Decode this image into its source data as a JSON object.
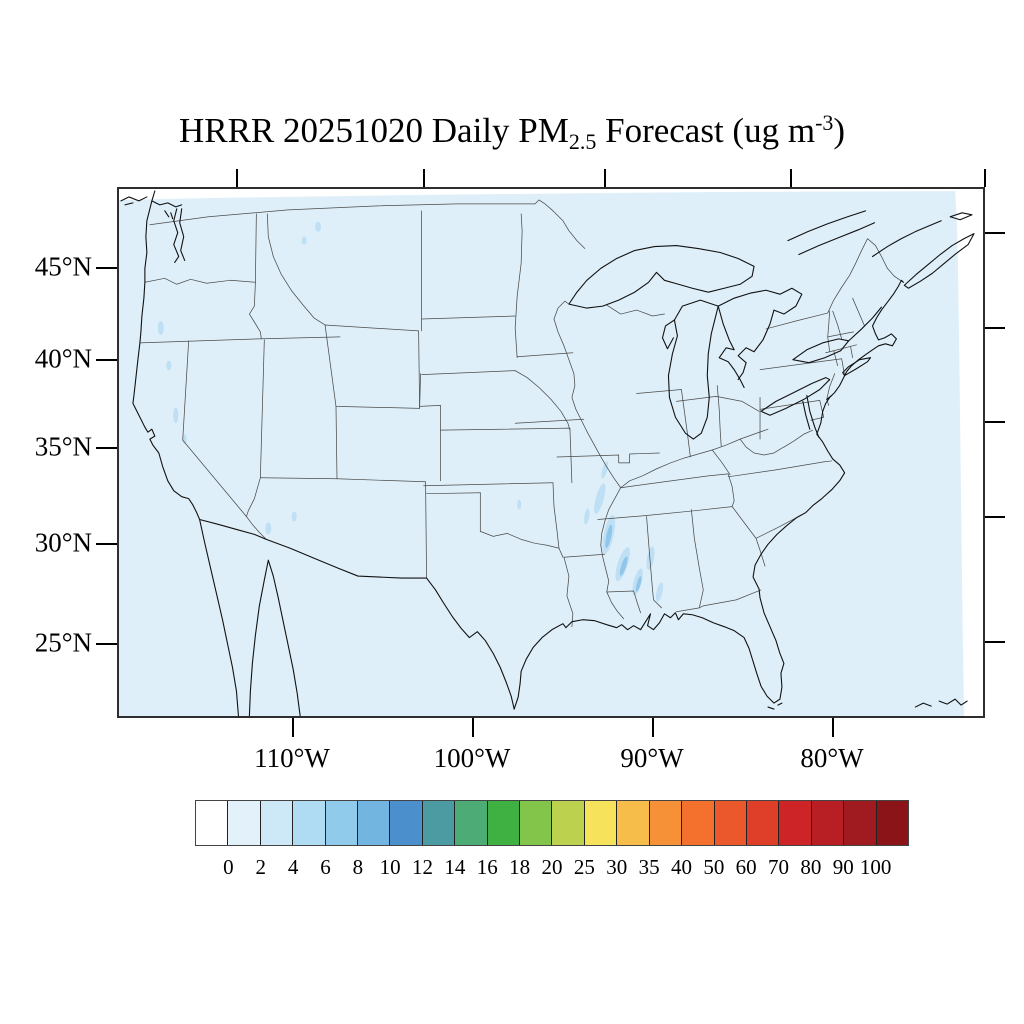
{
  "title": {
    "prefix": "HRRR 20251020 Daily PM",
    "subscript": "2.5",
    "middle": " Forecast (ug m",
    "superscript": "-3",
    "suffix": ")"
  },
  "map": {
    "fill_color": "#deeff9",
    "outside_domain_color": "#ffffff",
    "state_border_color": "#4a4a4a",
    "coastline_color": "#111111",
    "y_axis_labels": [
      "45°N",
      "40°N",
      "35°N",
      "30°N",
      "25°N"
    ],
    "x_axis_labels": [
      "110°W",
      "100°W",
      "90°W",
      "80°W"
    ]
  },
  "colorbar": {
    "tick_labels": [
      "0",
      "2",
      "4",
      "6",
      "8",
      "10",
      "12",
      "14",
      "16",
      "18",
      "20",
      "25",
      "30",
      "35",
      "40",
      "50",
      "60",
      "70",
      "80",
      "90",
      "100"
    ],
    "colors": [
      "#ffffff",
      "#e2f1fa",
      "#cde9f7",
      "#b0dcf3",
      "#90cbec",
      "#72b5e1",
      "#4b8fcc",
      "#4d9ba2",
      "#4dab76",
      "#3fb142",
      "#83c44b",
      "#bcd24f",
      "#f7e25b",
      "#f7bd4b",
      "#f79138",
      "#f4712d",
      "#ea582b",
      "#df3e29",
      "#cd2427",
      "#b81f24",
      "#a01b20",
      "#8a1418"
    ]
  },
  "chart_data": {
    "type": "heatmap",
    "title": "HRRR 20251020 Daily PM2.5 Forecast (ug m-3)",
    "units": "ug m-3",
    "projection": "Lambert conformal over CONUS",
    "xlabel": "",
    "ylabel": "",
    "x_tick_labels": [
      "110°W",
      "100°W",
      "90°W",
      "80°W"
    ],
    "y_tick_labels": [
      "45°N",
      "40°N",
      "35°N",
      "30°N",
      "25°N"
    ],
    "levels": [
      0,
      2,
      4,
      6,
      8,
      10,
      12,
      14,
      16,
      18,
      20,
      25,
      30,
      35,
      40,
      50,
      60,
      70,
      80,
      90,
      100
    ],
    "legend_position": "bottom horizontal label bar",
    "grid": false,
    "field_summary": "Nearly the entire domain is in the 0-2 ug/m3 bin (pale blue). Narrow NNE-SSW streaks of 2-6 ug/m3 over eastern Arkansas, Mississippi and Louisiana; a few small 2-4 ug/m3 spots over eastern Washington, Oregon, California's Central Valley, and southern Arizona.",
    "patches": [
      {
        "region": "eastern Arkansas / Mississippi / Louisiana",
        "value_range": "2-6"
      },
      {
        "region": "eastern Washington",
        "value_range": "2-4"
      },
      {
        "region": "western Oregon",
        "value_range": "2-4"
      },
      {
        "region": "California Central Valley",
        "value_range": "2-4"
      },
      {
        "region": "southern Arizona",
        "value_range": "2-4"
      }
    ]
  }
}
